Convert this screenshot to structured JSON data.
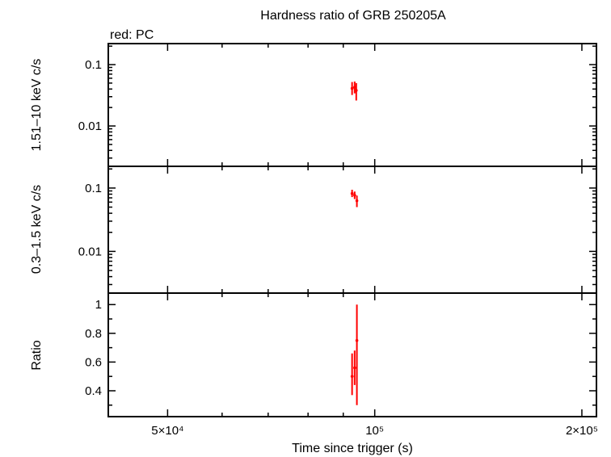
{
  "chart_data": {
    "type": "scatter",
    "title": "Hardness ratio of GRB 250205A",
    "legend_note": "red: PC",
    "xlabel": "Time since trigger (s)",
    "xscale": "log",
    "xlim": [
      41000,
      210000
    ],
    "x_tick_labels": [
      {
        "value": 50000,
        "label": "5×10⁴"
      },
      {
        "value": 100000,
        "label": "10⁵"
      },
      {
        "value": 200000,
        "label": "2×10⁵"
      }
    ],
    "panels": [
      {
        "id": "hard",
        "ylabel": "1.51–10 keV c/s",
        "yscale": "log",
        "ylim": [
          0.0022,
          0.22
        ],
        "y_tick_labels": [
          {
            "value": 0.1,
            "label": "0.1"
          },
          {
            "value": 0.01,
            "label": "0.01"
          }
        ],
        "series": [
          {
            "color": "#ff0000",
            "points": [
              {
                "x": 92700,
                "y": 0.041,
                "yerr": [
                  0.032,
                  0.052
                ],
                "xerr": [
                  92300,
                  93100
                ]
              },
              {
                "x": 93500,
                "y": 0.043,
                "yerr": [
                  0.034,
                  0.053
                ],
                "xerr": [
                  93200,
                  93800
                ]
              },
              {
                "x": 94000,
                "y": 0.038,
                "yerr": [
                  0.026,
                  0.05
                ],
                "xerr": [
                  93800,
                  94300
                ]
              }
            ]
          }
        ]
      },
      {
        "id": "soft",
        "ylabel": "0.3–1.5 keV c/s",
        "yscale": "log",
        "ylim": [
          0.0022,
          0.22
        ],
        "y_tick_labels": [
          {
            "value": 0.1,
            "label": "0.1"
          },
          {
            "value": 0.01,
            "label": "0.01"
          }
        ],
        "series": [
          {
            "color": "#ff0000",
            "points": [
              {
                "x": 92700,
                "y": 0.082,
                "yerr": [
                  0.072,
                  0.094
                ],
                "xerr": [
                  92300,
                  93100
                ]
              },
              {
                "x": 93500,
                "y": 0.077,
                "yerr": [
                  0.067,
                  0.088
                ],
                "xerr": [
                  93200,
                  93800
                ]
              },
              {
                "x": 94200,
                "y": 0.063,
                "yerr": [
                  0.05,
                  0.076
                ],
                "xerr": [
                  94000,
                  94400
                ]
              }
            ]
          }
        ]
      },
      {
        "id": "ratio",
        "ylabel": "Ratio",
        "yscale": "linear",
        "ylim": [
          0.22,
          1.08
        ],
        "y_tick_labels": [
          {
            "value": 0.4,
            "label": "0.4"
          },
          {
            "value": 0.6,
            "label": "0.6"
          },
          {
            "value": 0.8,
            "label": "0.8"
          },
          {
            "value": 1.0,
            "label": "1"
          }
        ],
        "series": [
          {
            "color": "#ff0000",
            "points": [
              {
                "x": 92700,
                "y": 0.5,
                "yerr": [
                  0.37,
                  0.66
                ],
                "xerr": [
                  92300,
                  93100
                ]
              },
              {
                "x": 93500,
                "y": 0.56,
                "yerr": [
                  0.44,
                  0.68
                ],
                "xerr": [
                  93200,
                  93800
                ]
              },
              {
                "x": 94200,
                "y": 0.75,
                "yerr": [
                  0.3,
                  1.0
                ],
                "xerr": [
                  94000,
                  94400
                ]
              }
            ]
          }
        ]
      }
    ]
  }
}
